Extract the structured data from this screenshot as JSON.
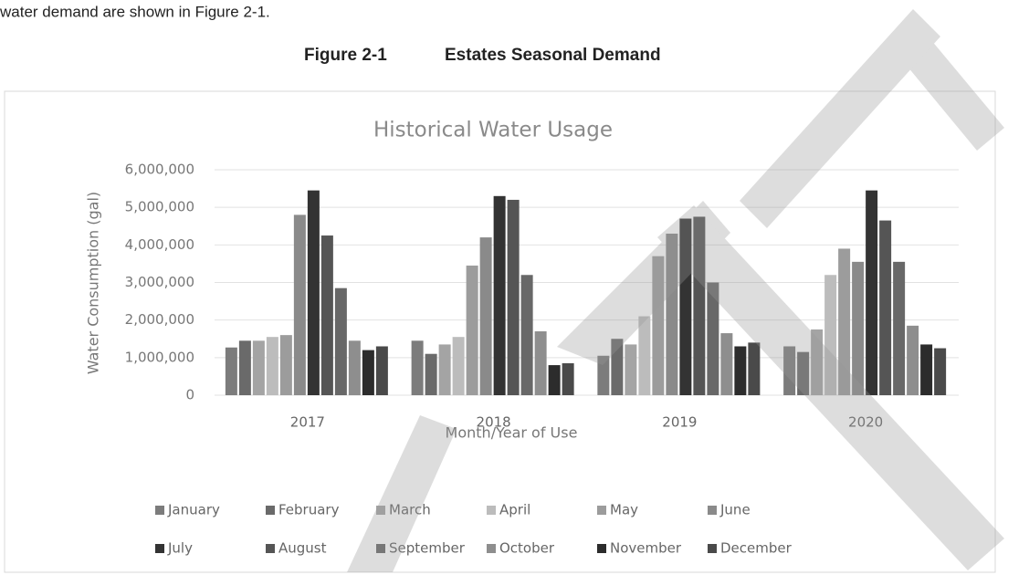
{
  "document": {
    "text": "water demand are shown in Figure 2-1.",
    "figure_label": "Figure 2-1",
    "figure_title": "Estates Seasonal Demand"
  },
  "chart_data": {
    "type": "bar",
    "title": "Historical Water Usage",
    "x_label": "Month/Year of Use",
    "y_label": "Water Consumption (gal)",
    "categories": [
      "2017",
      "2018",
      "2019",
      "2020"
    ],
    "ylim": [
      0,
      6000000
    ],
    "yticks": [
      0,
      {
        "value": 1000000,
        "label": "1,000,000"
      },
      {
        "value": 2000000,
        "label": "2,000,000"
      },
      {
        "value": 3000000,
        "label": "3,000,000"
      },
      {
        "value": 4000000,
        "label": "4,000,000"
      },
      {
        "value": 5000000,
        "label": "5,000,000"
      },
      {
        "value": 6000000,
        "label": "6,000,000"
      }
    ],
    "grid": true,
    "legend": "bottom",
    "series": [
      {
        "name": "January",
        "color": "#7c7c7c",
        "values": [
          1270000,
          1450000,
          1050000,
          1300000
        ]
      },
      {
        "name": "February",
        "color": "#6a6a6a",
        "values": [
          1450000,
          1100000,
          1500000,
          1150000
        ]
      },
      {
        "name": "March",
        "color": "#a4a4a4",
        "values": [
          1450000,
          1350000,
          1350000,
          1750000
        ]
      },
      {
        "name": "April",
        "color": "#bcbcbc",
        "values": [
          1550000,
          1550000,
          2100000,
          3200000
        ]
      },
      {
        "name": "May",
        "color": "#9c9c9c",
        "values": [
          1600000,
          3450000,
          3700000,
          3900000
        ]
      },
      {
        "name": "June",
        "color": "#8a8a8a",
        "values": [
          4800000,
          4200000,
          4300000,
          3550000
        ]
      },
      {
        "name": "July",
        "color": "#333333",
        "values": [
          5450000,
          5300000,
          4700000,
          5450000
        ]
      },
      {
        "name": "August",
        "color": "#555555",
        "values": [
          4250000,
          5200000,
          4750000,
          4650000
        ]
      },
      {
        "name": "September",
        "color": "#686868",
        "values": [
          2850000,
          3200000,
          3000000,
          3550000
        ]
      },
      {
        "name": "October",
        "color": "#8e8e8e",
        "values": [
          1450000,
          1700000,
          1650000,
          1850000
        ]
      },
      {
        "name": "November",
        "color": "#2c2c2c",
        "values": [
          1200000,
          800000,
          1300000,
          1350000
        ]
      },
      {
        "name": "December",
        "color": "#4a4a4a",
        "values": [
          1300000,
          850000,
          1400000,
          1250000
        ]
      }
    ]
  }
}
